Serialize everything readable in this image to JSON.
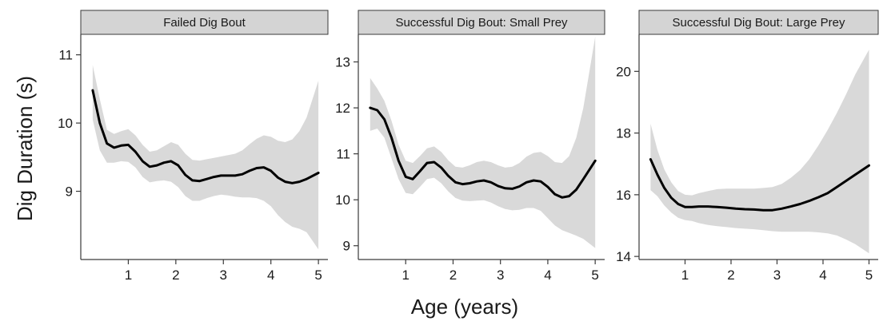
{
  "figure": {
    "ylabel": "Dig Duration  (s)",
    "xlabel": "Age (years)"
  },
  "colors": {
    "line": "#000000",
    "ribbon": "#d9d9d9",
    "strip": "#d4d4d4",
    "frame": "#3a3a3a"
  },
  "chart_data": [
    {
      "type": "line",
      "title": "Failed Dig Bout",
      "xticks": [
        1,
        2,
        3,
        4,
        5
      ],
      "yticks": [
        9,
        10,
        11
      ],
      "xlim": [
        0.0,
        5.2
      ],
      "ylim": [
        8.0,
        11.3
      ],
      "series": [
        {
          "x": [
            0.25,
            0.4,
            0.55,
            0.7,
            0.85,
            1.0,
            1.15,
            1.3,
            1.45,
            1.6,
            1.75,
            1.9,
            2.05,
            2.2,
            2.35,
            2.5,
            2.65,
            2.8,
            2.95,
            3.1,
            3.25,
            3.4,
            3.55,
            3.7,
            3.85,
            4.0,
            4.15,
            4.3,
            4.45,
            4.6,
            4.75,
            5.0
          ],
          "y": [
            10.48,
            10.0,
            9.7,
            9.64,
            9.67,
            9.68,
            9.58,
            9.44,
            9.36,
            9.38,
            9.42,
            9.44,
            9.38,
            9.24,
            9.16,
            9.15,
            9.18,
            9.21,
            9.23,
            9.23,
            9.23,
            9.25,
            9.3,
            9.34,
            9.35,
            9.3,
            9.2,
            9.14,
            9.12,
            9.14,
            9.18,
            9.27
          ],
          "lower": [
            10.05,
            9.6,
            9.42,
            9.42,
            9.44,
            9.43,
            9.35,
            9.21,
            9.13,
            9.15,
            9.16,
            9.14,
            9.06,
            8.93,
            8.86,
            8.86,
            8.9,
            8.93,
            8.95,
            8.94,
            8.92,
            8.91,
            8.91,
            8.9,
            8.86,
            8.78,
            8.65,
            8.55,
            8.48,
            8.45,
            8.4,
            8.15
          ],
          "upper": [
            10.85,
            10.35,
            9.9,
            9.84,
            9.88,
            9.91,
            9.82,
            9.68,
            9.58,
            9.6,
            9.66,
            9.72,
            9.68,
            9.55,
            9.46,
            9.45,
            9.47,
            9.49,
            9.51,
            9.53,
            9.55,
            9.6,
            9.69,
            9.77,
            9.82,
            9.8,
            9.74,
            9.72,
            9.76,
            9.88,
            10.08,
            10.62
          ]
        }
      ]
    },
    {
      "type": "line",
      "title": "Successful Dig Bout: Small Prey",
      "xticks": [
        1,
        2,
        3,
        4,
        5
      ],
      "yticks": [
        9,
        10,
        11,
        12,
        13
      ],
      "xlim": [
        0.0,
        5.2
      ],
      "ylim": [
        8.7,
        13.6
      ],
      "series": [
        {
          "x": [
            0.25,
            0.4,
            0.55,
            0.7,
            0.85,
            1.0,
            1.15,
            1.3,
            1.45,
            1.6,
            1.75,
            1.9,
            2.05,
            2.2,
            2.35,
            2.5,
            2.65,
            2.8,
            2.95,
            3.1,
            3.25,
            3.4,
            3.55,
            3.7,
            3.85,
            4.0,
            4.15,
            4.3,
            4.45,
            4.6,
            4.75,
            5.0
          ],
          "y": [
            12.0,
            11.95,
            11.75,
            11.35,
            10.85,
            10.5,
            10.45,
            10.62,
            10.8,
            10.82,
            10.7,
            10.52,
            10.38,
            10.34,
            10.36,
            10.4,
            10.42,
            10.38,
            10.3,
            10.25,
            10.24,
            10.29,
            10.38,
            10.42,
            10.4,
            10.28,
            10.12,
            10.05,
            10.08,
            10.22,
            10.45,
            10.85
          ],
          "lower": [
            11.5,
            11.55,
            11.35,
            10.9,
            10.45,
            10.15,
            10.12,
            10.28,
            10.45,
            10.48,
            10.36,
            10.18,
            10.04,
            9.98,
            9.97,
            9.98,
            9.99,
            9.94,
            9.86,
            9.8,
            9.77,
            9.78,
            9.82,
            9.82,
            9.76,
            9.6,
            9.44,
            9.34,
            9.28,
            9.22,
            9.15,
            8.95
          ],
          "upper": [
            12.65,
            12.42,
            12.15,
            11.72,
            11.2,
            10.85,
            10.8,
            10.95,
            11.12,
            11.16,
            11.04,
            10.86,
            10.72,
            10.7,
            10.75,
            10.82,
            10.85,
            10.82,
            10.75,
            10.7,
            10.72,
            10.8,
            10.94,
            11.02,
            11.04,
            10.95,
            10.82,
            10.8,
            10.95,
            11.35,
            12.0,
            13.55
          ]
        }
      ]
    },
    {
      "type": "line",
      "title": "Successful Dig Bout: Large Prey",
      "xticks": [
        1,
        2,
        3,
        4,
        5
      ],
      "yticks": [
        14,
        16,
        18,
        20
      ],
      "xlim": [
        0.0,
        5.2
      ],
      "ylim": [
        13.9,
        21.2
      ],
      "series": [
        {
          "x": [
            0.25,
            0.4,
            0.55,
            0.7,
            0.85,
            1.0,
            1.15,
            1.3,
            1.5,
            1.7,
            1.9,
            2.1,
            2.3,
            2.5,
            2.7,
            2.9,
            3.1,
            3.3,
            3.5,
            3.7,
            3.9,
            4.1,
            4.3,
            4.5,
            4.7,
            5.0
          ],
          "y": [
            17.15,
            16.65,
            16.22,
            15.9,
            15.7,
            15.6,
            15.6,
            15.62,
            15.62,
            15.6,
            15.58,
            15.55,
            15.53,
            15.52,
            15.5,
            15.5,
            15.55,
            15.62,
            15.7,
            15.8,
            15.92,
            16.05,
            16.25,
            16.45,
            16.65,
            16.95
          ],
          "lower": [
            16.15,
            15.95,
            15.65,
            15.42,
            15.25,
            15.18,
            15.15,
            15.08,
            15.02,
            14.98,
            14.95,
            14.92,
            14.9,
            14.88,
            14.85,
            14.82,
            14.8,
            14.8,
            14.8,
            14.8,
            14.78,
            14.75,
            14.68,
            14.55,
            14.4,
            14.1
          ],
          "upper": [
            18.3,
            17.45,
            16.82,
            16.4,
            16.12,
            16.0,
            15.98,
            16.05,
            16.12,
            16.18,
            16.2,
            16.2,
            16.2,
            16.2,
            16.22,
            16.25,
            16.35,
            16.55,
            16.8,
            17.15,
            17.6,
            18.1,
            18.65,
            19.25,
            19.9,
            20.7
          ]
        }
      ]
    }
  ]
}
